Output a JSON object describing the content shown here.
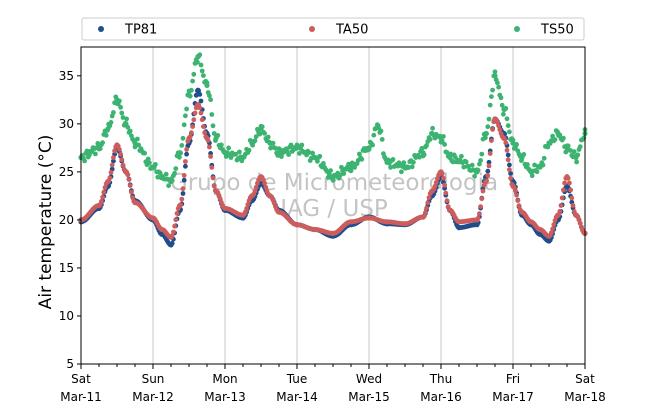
{
  "chart_data": {
    "type": "scatter",
    "title": "",
    "xlabel": "",
    "ylabel": "Air temperature (°C)",
    "ylim": [
      5,
      38
    ],
    "yticks": [
      5,
      10,
      15,
      20,
      25,
      30,
      35
    ],
    "xlim": [
      "2017-03-11 00:00",
      "2017-03-18 00:00"
    ],
    "x_major_ticks": [
      {
        "x": "2017-03-11 00:00",
        "day": "Sat",
        "date": "Mar-11"
      },
      {
        "x": "2017-03-12 00:00",
        "day": "Sun",
        "date": "Mar-12"
      },
      {
        "x": "2017-03-13 00:00",
        "day": "Mon",
        "date": "Mar-13"
      },
      {
        "x": "2017-03-14 00:00",
        "day": "Tue",
        "date": "Mar-14"
      },
      {
        "x": "2017-03-15 00:00",
        "day": "Wed",
        "date": "Mar-15"
      },
      {
        "x": "2017-03-16 00:00",
        "day": "Thu",
        "date": "Mar-16"
      },
      {
        "x": "2017-03-17 00:00",
        "day": "Fri",
        "date": "Mar-17"
      },
      {
        "x": "2017-03-18 00:00",
        "day": "Sat",
        "date": "Mar-18"
      }
    ],
    "x_minor_tick_hours": 6,
    "grid": "vertical at day boundaries",
    "legend": {
      "placement": "top",
      "columns": 3
    },
    "watermark": [
      "Grupo de Micrometeorologia",
      "IAG / USP"
    ],
    "series": [
      {
        "name": "TP81",
        "color": "#1f4e8c",
        "points": [
          [
            "2017-03-11 00:00",
            19.8
          ],
          [
            "2017-03-11 06:00",
            21.2
          ],
          [
            "2017-03-11 09:00",
            23.5
          ],
          [
            "2017-03-11 12:00",
            27.5
          ],
          [
            "2017-03-11 15:00",
            25.0
          ],
          [
            "2017-03-11 18:00",
            22.0
          ],
          [
            "2017-03-12 00:00",
            20.0
          ],
          [
            "2017-03-12 03:00",
            18.5
          ],
          [
            "2017-03-12 06:00",
            17.4
          ],
          [
            "2017-03-12 09:00",
            21.0
          ],
          [
            "2017-03-12 12:00",
            28.0
          ],
          [
            "2017-03-12 15:00",
            33.5
          ],
          [
            "2017-03-12 18:00",
            29.0
          ],
          [
            "2017-03-12 21:00",
            23.0
          ],
          [
            "2017-03-13 00:00",
            21.0
          ],
          [
            "2017-03-13 06:00",
            20.2
          ],
          [
            "2017-03-13 09:00",
            22.0
          ],
          [
            "2017-03-13 12:00",
            23.8
          ],
          [
            "2017-03-13 15:00",
            22.5
          ],
          [
            "2017-03-13 18:00",
            21.0
          ],
          [
            "2017-03-14 00:00",
            19.5
          ],
          [
            "2017-03-14 06:00",
            19.0
          ],
          [
            "2017-03-14 12:00",
            18.3
          ],
          [
            "2017-03-14 18:00",
            19.5
          ],
          [
            "2017-03-15 00:00",
            20.3
          ],
          [
            "2017-03-15 06:00",
            19.6
          ],
          [
            "2017-03-15 12:00",
            19.5
          ],
          [
            "2017-03-15 18:00",
            20.3
          ],
          [
            "2017-03-15 21:00",
            22.5
          ],
          [
            "2017-03-16 00:00",
            24.5
          ],
          [
            "2017-03-16 03:00",
            21.0
          ],
          [
            "2017-03-16 06:00",
            19.2
          ],
          [
            "2017-03-16 12:00",
            19.5
          ],
          [
            "2017-03-16 15:00",
            24.5
          ],
          [
            "2017-03-16 18:00",
            30.5
          ],
          [
            "2017-03-16 21:00",
            29.0
          ],
          [
            "2017-03-17 00:00",
            24.0
          ],
          [
            "2017-03-17 03:00",
            20.5
          ],
          [
            "2017-03-17 06:00",
            19.5
          ],
          [
            "2017-03-17 09:00",
            18.5
          ],
          [
            "2017-03-17 12:00",
            17.8
          ],
          [
            "2017-03-17 15:00",
            20.0
          ],
          [
            "2017-03-17 18:00",
            23.5
          ],
          [
            "2017-03-17 21:00",
            20.5
          ],
          [
            "2017-03-18 00:00",
            18.6
          ]
        ]
      },
      {
        "name": "TA50",
        "color": "#cd5c5c",
        "points": [
          [
            "2017-03-11 00:00",
            20.0
          ],
          [
            "2017-03-11 06:00",
            21.5
          ],
          [
            "2017-03-11 09:00",
            24.0
          ],
          [
            "2017-03-11 12:00",
            27.8
          ],
          [
            "2017-03-11 15:00",
            25.0
          ],
          [
            "2017-03-11 18:00",
            21.8
          ],
          [
            "2017-03-12 00:00",
            20.2
          ],
          [
            "2017-03-12 03:00",
            19.0
          ],
          [
            "2017-03-12 06:00",
            18.2
          ],
          [
            "2017-03-12 09:00",
            21.5
          ],
          [
            "2017-03-12 12:00",
            28.5
          ],
          [
            "2017-03-12 15:00",
            32.0
          ],
          [
            "2017-03-12 18:00",
            28.5
          ],
          [
            "2017-03-12 21:00",
            23.0
          ],
          [
            "2017-03-13 00:00",
            21.2
          ],
          [
            "2017-03-13 06:00",
            20.5
          ],
          [
            "2017-03-13 09:00",
            22.5
          ],
          [
            "2017-03-13 12:00",
            24.5
          ],
          [
            "2017-03-13 15:00",
            22.5
          ],
          [
            "2017-03-13 18:00",
            20.8
          ],
          [
            "2017-03-14 00:00",
            19.5
          ],
          [
            "2017-03-14 06:00",
            19.0
          ],
          [
            "2017-03-14 12:00",
            18.6
          ],
          [
            "2017-03-14 18:00",
            19.8
          ],
          [
            "2017-03-15 00:00",
            20.2
          ],
          [
            "2017-03-15 06:00",
            19.8
          ],
          [
            "2017-03-15 12:00",
            19.6
          ],
          [
            "2017-03-15 18:00",
            20.3
          ],
          [
            "2017-03-15 21:00",
            23.0
          ],
          [
            "2017-03-16 00:00",
            25.0
          ],
          [
            "2017-03-16 03:00",
            21.0
          ],
          [
            "2017-03-16 06:00",
            19.8
          ],
          [
            "2017-03-16 12:00",
            20.0
          ],
          [
            "2017-03-16 15:00",
            24.0
          ],
          [
            "2017-03-16 18:00",
            30.5
          ],
          [
            "2017-03-16 21:00",
            28.5
          ],
          [
            "2017-03-17 00:00",
            23.5
          ],
          [
            "2017-03-17 03:00",
            20.8
          ],
          [
            "2017-03-17 06:00",
            19.8
          ],
          [
            "2017-03-17 09:00",
            19.0
          ],
          [
            "2017-03-17 12:00",
            18.3
          ],
          [
            "2017-03-17 15:00",
            20.5
          ],
          [
            "2017-03-17 18:00",
            24.5
          ],
          [
            "2017-03-17 21:00",
            20.5
          ],
          [
            "2017-03-18 00:00",
            18.6
          ]
        ]
      },
      {
        "name": "TS50",
        "color": "#3cb371",
        "points": [
          [
            "2017-03-11 00:00",
            26.5
          ],
          [
            "2017-03-11 06:00",
            27.5
          ],
          [
            "2017-03-11 09:00",
            29.5
          ],
          [
            "2017-03-11 12:00",
            32.5
          ],
          [
            "2017-03-11 15:00",
            30.0
          ],
          [
            "2017-03-11 18:00",
            28.0
          ],
          [
            "2017-03-12 00:00",
            25.5
          ],
          [
            "2017-03-12 03:00",
            24.5
          ],
          [
            "2017-03-12 06:00",
            24.0
          ],
          [
            "2017-03-12 09:00",
            27.0
          ],
          [
            "2017-03-12 12:00",
            33.0
          ],
          [
            "2017-03-12 15:00",
            37.0
          ],
          [
            "2017-03-12 18:00",
            34.0
          ],
          [
            "2017-03-12 21:00",
            28.5
          ],
          [
            "2017-03-13 00:00",
            27.0
          ],
          [
            "2017-03-13 06:00",
            26.5
          ],
          [
            "2017-03-13 09:00",
            28.0
          ],
          [
            "2017-03-13 12:00",
            29.5
          ],
          [
            "2017-03-13 15:00",
            28.0
          ],
          [
            "2017-03-13 18:00",
            27.0
          ],
          [
            "2017-03-14 00:00",
            27.5
          ],
          [
            "2017-03-14 06:00",
            26.5
          ],
          [
            "2017-03-14 12:00",
            24.5
          ],
          [
            "2017-03-14 18:00",
            25.5
          ],
          [
            "2017-03-15 00:00",
            27.5
          ],
          [
            "2017-03-15 03:00",
            29.8
          ],
          [
            "2017-03-15 06:00",
            26.0
          ],
          [
            "2017-03-15 12:00",
            25.5
          ],
          [
            "2017-03-15 18:00",
            27.0
          ],
          [
            "2017-03-15 21:00",
            29.0
          ],
          [
            "2017-03-16 00:00",
            28.5
          ],
          [
            "2017-03-16 03:00",
            26.5
          ],
          [
            "2017-03-16 06:00",
            26.2
          ],
          [
            "2017-03-16 12:00",
            25.0
          ],
          [
            "2017-03-16 15:00",
            29.0
          ],
          [
            "2017-03-16 18:00",
            35.0
          ],
          [
            "2017-03-16 21:00",
            31.5
          ],
          [
            "2017-03-17 00:00",
            28.0
          ],
          [
            "2017-03-17 03:00",
            26.5
          ],
          [
            "2017-03-17 06:00",
            25.0
          ],
          [
            "2017-03-17 09:00",
            25.5
          ],
          [
            "2017-03-17 12:00",
            28.0
          ],
          [
            "2017-03-17 15:00",
            29.0
          ],
          [
            "2017-03-17 18:00",
            27.5
          ],
          [
            "2017-03-17 21:00",
            26.5
          ],
          [
            "2017-03-18 00:00",
            29.0
          ]
        ]
      }
    ]
  }
}
